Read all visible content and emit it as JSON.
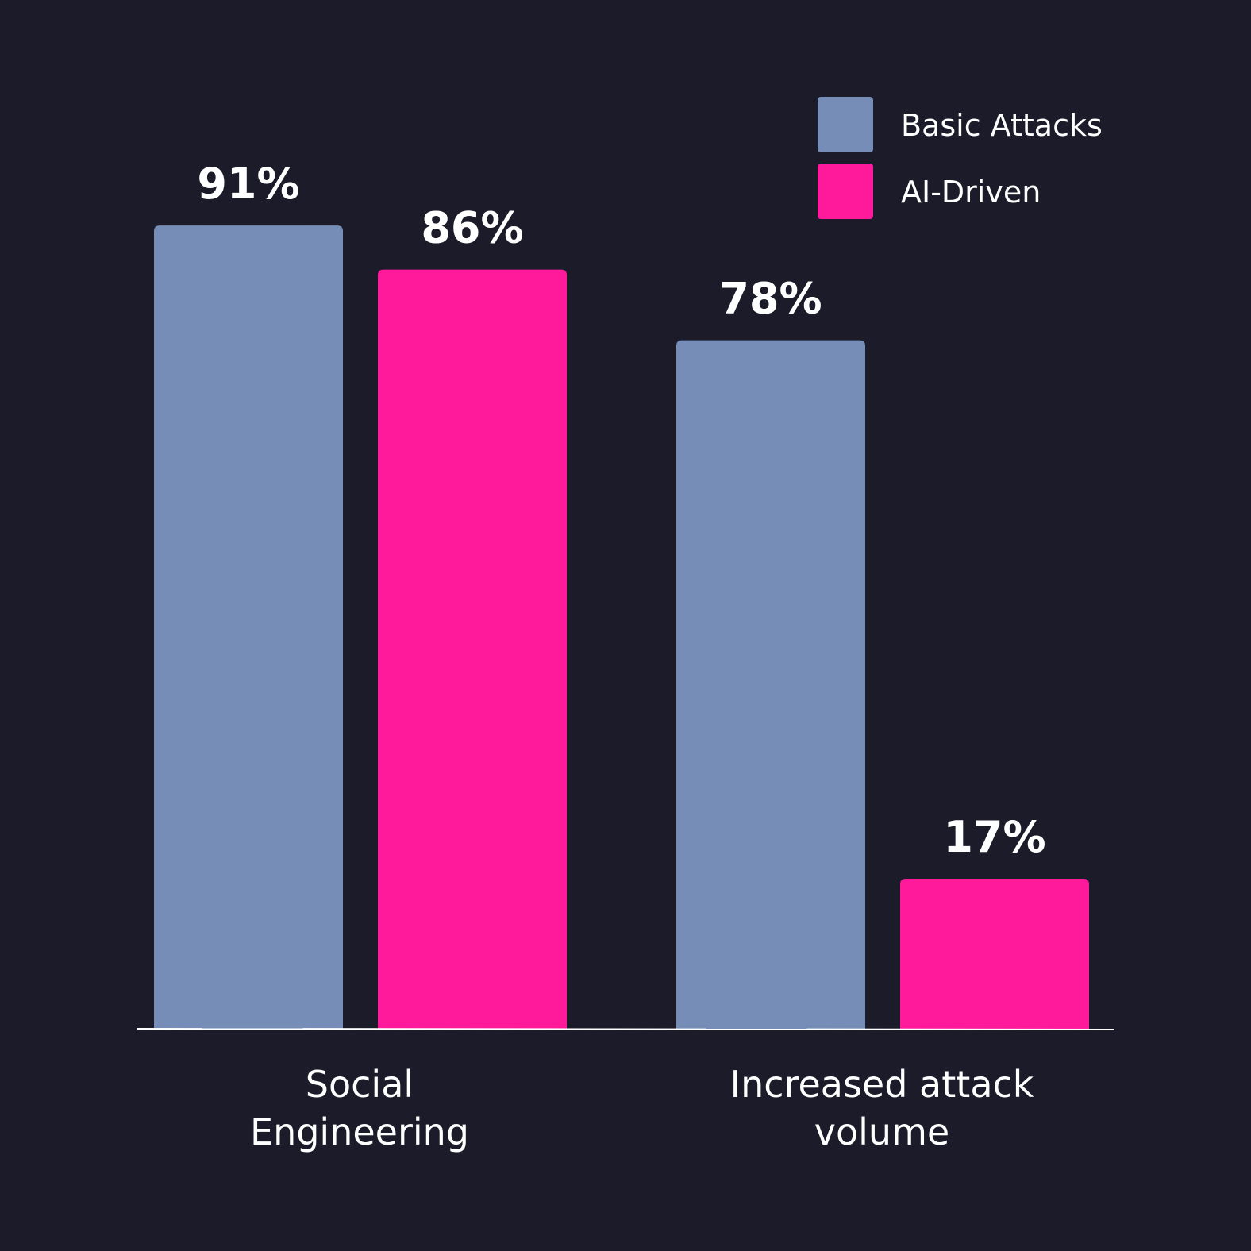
{
  "chart_data": {
    "type": "bar",
    "categories": [
      "Social Engineering",
      "Increased attack volume"
    ],
    "category_lines": [
      [
        "Social",
        "Engineering"
      ],
      [
        "Increased attack",
        "volume"
      ]
    ],
    "series": [
      {
        "name": "Basic Attacks",
        "values": [
          91,
          78
        ],
        "labels": [
          "91%",
          "78%"
        ],
        "color": "#768eb7"
      },
      {
        "name": "AI-Driven",
        "values": [
          86,
          17
        ],
        "labels": [
          "86%",
          "17%"
        ],
        "color": "#ff1a9c"
      }
    ],
    "ylim": [
      0,
      100
    ],
    "grid": false,
    "legend_position": "top-right",
    "title": "",
    "xlabel": "",
    "ylabel": ""
  },
  "colors": {
    "background": "#1b1b29",
    "axis": "#ffffff",
    "text": "#ffffff"
  }
}
